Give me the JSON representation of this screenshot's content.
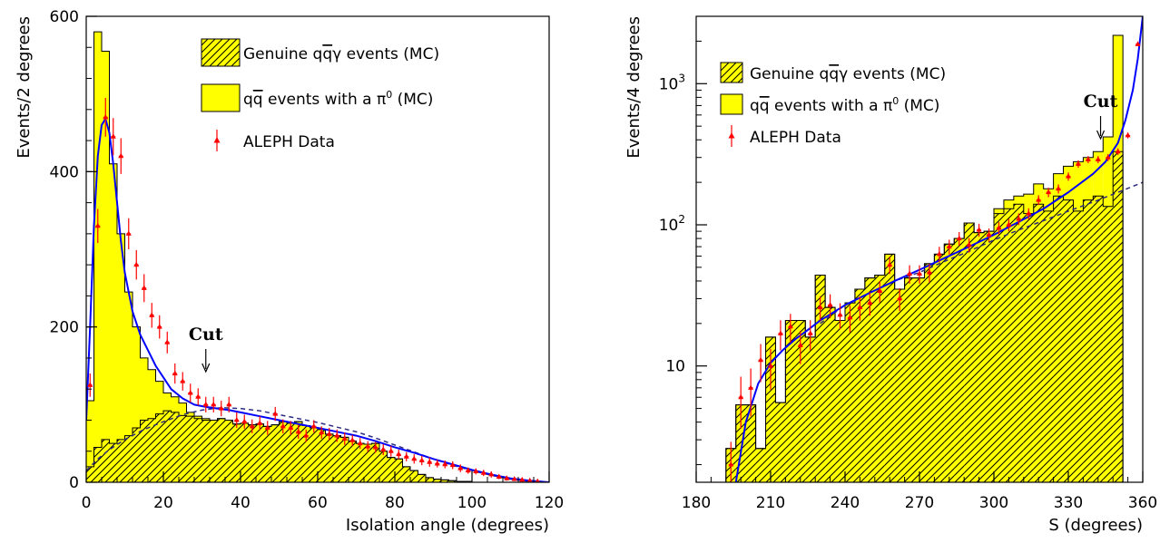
{
  "chart_data": [
    {
      "type": "histogram",
      "xlabel": "Isolation angle (degrees)",
      "ylabel": "Events/2 degrees",
      "xlim": [
        0,
        120
      ],
      "ylim": [
        0,
        600
      ],
      "y_scale": "linear",
      "x_ticks": [
        0,
        20,
        40,
        60,
        80,
        100,
        120
      ],
      "y_ticks": [
        0,
        200,
        400,
        600
      ],
      "x_tick_labels": [
        "0",
        "20",
        "40",
        "60",
        "80",
        "100",
        "120"
      ],
      "y_tick_labels": [
        "0",
        "200",
        "400",
        "600"
      ],
      "legend_position": "top-right",
      "legend": [
        {
          "key": "genuine",
          "pre": "Genuine ",
          "q1": "q",
          "q2": "q",
          "post": "γ events (MC)"
        },
        {
          "key": "pi0",
          "q1": "q",
          "q2": "q",
          "post": " events with a π",
          "sup": "0",
          "post2": " (MC)"
        },
        {
          "key": "data",
          "text": "ALEPH Data"
        }
      ],
      "annotation": {
        "text": "Cut",
        "x": 31
      },
      "bin_edges_start": 0,
      "bin_width": 2,
      "total_mc": [
        105,
        580,
        555,
        410,
        320,
        245,
        200,
        160,
        145,
        130,
        115,
        110,
        102,
        90,
        85,
        82,
        80,
        82,
        80,
        75,
        76,
        74,
        75,
        72,
        74,
        78,
        76,
        78,
        73,
        70,
        68,
        62,
        60,
        58,
        53,
        50,
        49,
        50,
        40,
        32,
        30,
        20,
        15,
        10,
        6,
        4,
        3,
        2,
        1,
        1
      ],
      "genuine_mc": [
        20,
        45,
        55,
        50,
        55,
        60,
        70,
        80,
        82,
        88,
        92,
        90,
        86,
        85,
        82,
        80,
        80,
        82,
        80,
        75,
        76,
        74,
        75,
        72,
        74,
        78,
        76,
        78,
        73,
        70,
        68,
        62,
        60,
        58,
        53,
        50,
        49,
        50,
        40,
        32,
        30,
        20,
        15,
        10,
        6,
        4,
        3,
        2,
        1,
        1
      ],
      "data_points": {
        "x": [
          1,
          3,
          5,
          7,
          9,
          11,
          13,
          15,
          17,
          19,
          21,
          23,
          25,
          27,
          29,
          31,
          33,
          35,
          37,
          39,
          41,
          43,
          45,
          47,
          49,
          51,
          53,
          55,
          57,
          59,
          61,
          63,
          65,
          67,
          69,
          71,
          73,
          75,
          77,
          79,
          81,
          83,
          85,
          87,
          89,
          91,
          93,
          95,
          97,
          99,
          101,
          103,
          105,
          107,
          109,
          111,
          113,
          115,
          117,
          119
        ],
        "y": [
          125,
          330,
          470,
          445,
          420,
          320,
          280,
          250,
          215,
          200,
          180,
          140,
          130,
          115,
          110,
          100,
          100,
          95,
          100,
          80,
          78,
          72,
          76,
          70,
          88,
          72,
          70,
          65,
          60,
          72,
          64,
          62,
          60,
          56,
          54,
          50,
          46,
          45,
          42,
          40,
          36,
          33,
          30,
          28,
          26,
          24,
          23,
          22,
          18,
          15,
          14,
          12,
          10,
          7,
          5,
          4,
          3,
          2,
          1,
          0
        ],
        "err": [
          15,
          22,
          25,
          24,
          23,
          20,
          19,
          18,
          16,
          15,
          14,
          13,
          12,
          12,
          11,
          10,
          10,
          10,
          10,
          10,
          9,
          9,
          9,
          9,
          9,
          9,
          9,
          9,
          8,
          8,
          8,
          8,
          8,
          8,
          7,
          7,
          7,
          7,
          7,
          7,
          6,
          6,
          6,
          6,
          6,
          5,
          5,
          5,
          5,
          4,
          4,
          4,
          4,
          3,
          3,
          2,
          2,
          2,
          1,
          1
        ]
      },
      "fit_solid": {
        "x": [
          0,
          1,
          2,
          3,
          4,
          5,
          6,
          7,
          8,
          9,
          10,
          12,
          14,
          16,
          18,
          20,
          22,
          25,
          28,
          31,
          34,
          37,
          40,
          45,
          50,
          55,
          60,
          65,
          70,
          75,
          80,
          85,
          90,
          95,
          100,
          105,
          110,
          115,
          120
        ],
        "y": [
          80,
          200,
          330,
          420,
          460,
          468,
          450,
          410,
          360,
          310,
          270,
          220,
          190,
          170,
          150,
          135,
          120,
          108,
          100,
          97,
          95,
          93,
          90,
          85,
          80,
          75,
          70,
          65,
          60,
          53,
          45,
          38,
          30,
          23,
          16,
          10,
          5,
          2,
          0
        ]
      },
      "fit_dashed": {
        "x": [
          0,
          3,
          6,
          10,
          15,
          20,
          25,
          30,
          35,
          40,
          45,
          50,
          55,
          60,
          65,
          70,
          75,
          80,
          85,
          90,
          95,
          100,
          105,
          110,
          115,
          120
        ],
        "y": [
          15,
          30,
          42,
          55,
          68,
          78,
          87,
          93,
          96,
          95,
          92,
          87,
          82,
          77,
          71,
          65,
          57,
          48,
          39,
          30,
          22,
          15,
          9,
          4,
          1,
          0
        ]
      }
    },
    {
      "type": "histogram",
      "xlabel": "S (degrees)",
      "ylabel": "Events/4 degrees",
      "xlim": [
        180,
        360
      ],
      "ylim": [
        1.5,
        3000
      ],
      "y_scale": "log",
      "x_ticks": [
        180,
        210,
        240,
        270,
        300,
        330,
        360
      ],
      "y_ticks": [
        10,
        100,
        1000
      ],
      "x_tick_labels": [
        "180",
        "210",
        "240",
        "270",
        "300",
        "330",
        "360"
      ],
      "y_major_labels": [
        {
          "value": 10,
          "base": "10"
        },
        {
          "value": 100,
          "base": "10",
          "exp": "2"
        },
        {
          "value": 1000,
          "base": "10",
          "exp": "3"
        }
      ],
      "legend_position": "top-left",
      "legend": [
        {
          "key": "genuine",
          "pre": "Genuine ",
          "q1": "q",
          "q2": "q",
          "post": "γ events (MC)"
        },
        {
          "key": "pi0",
          "q1": "q",
          "q2": "q",
          "post": " events with a π",
          "sup": "0",
          "post2": " (MC)"
        },
        {
          "key": "data",
          "text": "ALEPH Data"
        }
      ],
      "annotation": {
        "text": "Cut",
        "x": 343
      },
      "bin_edges_start": 192,
      "bin_width": 4,
      "total_mc": [
        2.6,
        5.3,
        5.3,
        2.6,
        16,
        5.5,
        21,
        21,
        16,
        44,
        26,
        21,
        28,
        35,
        42,
        44,
        62,
        35,
        42,
        42,
        53,
        62,
        73,
        80,
        103,
        88,
        90,
        130,
        150,
        160,
        165,
        195,
        180,
        230,
        260,
        280,
        300,
        330,
        420,
        2200
      ],
      "genuine_mc": [
        2.6,
        5.3,
        5.3,
        2.6,
        16,
        5.5,
        21,
        21,
        16,
        44,
        26,
        21,
        28,
        35,
        42,
        44,
        62,
        35,
        42,
        42,
        53,
        62,
        73,
        80,
        103,
        88,
        90,
        120,
        130,
        140,
        120,
        140,
        125,
        160,
        150,
        125,
        150,
        160,
        135,
        330
      ],
      "data_points": {
        "x": [
          194,
          198,
          202,
          206,
          210,
          214,
          218,
          222,
          226,
          230,
          234,
          238,
          242,
          246,
          250,
          254,
          258,
          262,
          266,
          270,
          274,
          278,
          282,
          286,
          290,
          294,
          298,
          302,
          306,
          310,
          314,
          318,
          322,
          326,
          330,
          334,
          338,
          342,
          346,
          350,
          354,
          358
        ],
        "y": [
          2,
          6,
          7,
          11,
          10,
          17,
          19,
          14,
          17,
          26,
          27,
          23,
          22,
          26,
          28,
          34,
          52,
          30,
          45,
          45,
          46,
          62,
          70,
          80,
          72,
          92,
          85,
          95,
          100,
          110,
          120,
          150,
          170,
          180,
          220,
          270,
          290,
          290,
          300,
          330,
          430,
          1900
        ],
        "err": [
          0.9,
          2.4,
          2.6,
          3.3,
          3.2,
          4.1,
          4.4,
          3.7,
          4.1,
          5.1,
          5.2,
          4.8,
          4.7,
          5.1,
          5.3,
          5.8,
          7.2,
          5.5,
          6.7,
          6.7,
          6.8,
          7.9,
          8.4,
          8.9,
          8.5,
          9.6,
          9.2,
          9.7,
          10,
          10.5,
          11,
          12,
          13,
          13.4,
          14.8,
          16.4,
          17,
          17,
          17.3,
          18.2,
          20.7,
          43.6
        ]
      },
      "fit_solid": {
        "x": [
          196,
          200,
          205,
          210,
          215,
          220,
          225,
          230,
          240,
          250,
          260,
          270,
          280,
          290,
          300,
          310,
          320,
          330,
          340,
          345,
          350,
          353,
          356,
          358,
          360
        ],
        "y": [
          1.5,
          4,
          7.5,
          10.5,
          13,
          15.5,
          18,
          21,
          27,
          33,
          40,
          48,
          58,
          70,
          85,
          105,
          130,
          170,
          230,
          280,
          380,
          550,
          900,
          1500,
          3000
        ]
      },
      "fit_dashed": {
        "x": [
          230,
          240,
          250,
          260,
          270,
          280,
          290,
          300,
          310,
          320,
          330,
          340,
          350,
          360
        ],
        "y": [
          20,
          27,
          33,
          40,
          46,
          55,
          65,
          78,
          92,
          107,
          125,
          145,
          170,
          200
        ]
      }
    }
  ],
  "colors": {
    "fill_yellow": "#ffff00",
    "hatch": "#000000",
    "data_red": "#ff0000",
    "fit_blue": "#0000ff",
    "dash_navy": "#2a2a80",
    "axes": "#000000"
  }
}
